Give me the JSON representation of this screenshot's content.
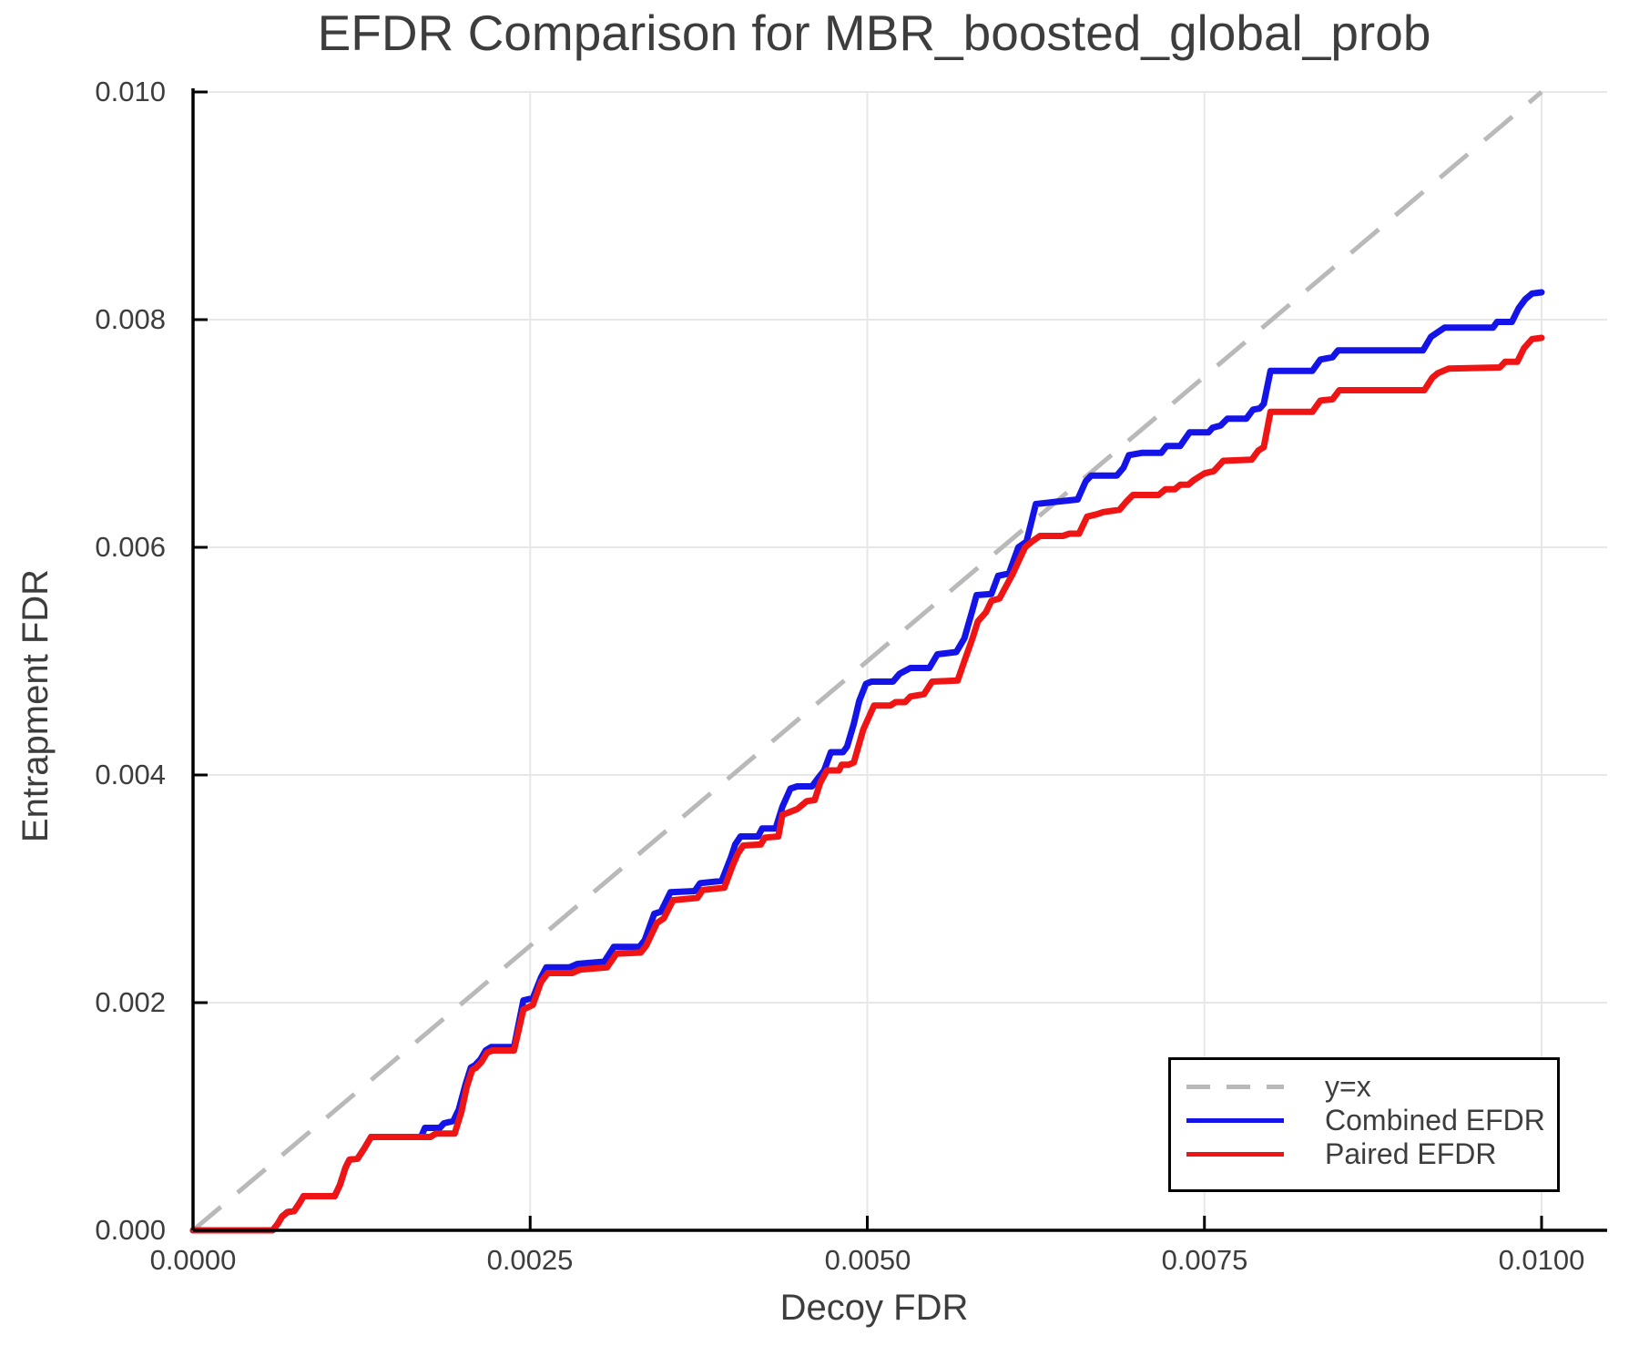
{
  "chart_data": {
    "type": "line",
    "title": "EFDR Comparison for MBR_boosted_global_prob",
    "xlabel": "Decoy FDR",
    "ylabel": "Entrapment FDR",
    "xlim": [
      0.0,
      0.0105
    ],
    "ylim": [
      0.0,
      0.01
    ],
    "grid": true,
    "xticks": {
      "values": [
        0.0,
        0.0025,
        0.005,
        0.0075,
        0.01
      ],
      "labels": [
        "0.0000",
        "0.0025",
        "0.0050",
        "0.0075",
        "0.0100"
      ]
    },
    "yticks": {
      "values": [
        0.0,
        0.002,
        0.004,
        0.006,
        0.008,
        0.01
      ],
      "labels": [
        "0.000",
        "0.002",
        "0.004",
        "0.006",
        "0.008",
        "0.010"
      ]
    },
    "colors": {
      "combined": "#1414e8",
      "paired": "#ef1515",
      "reference": "#b9b9b9",
      "grid": "#e7e7e7",
      "axis": "#000000",
      "text": "#3d3d3d"
    },
    "legend": {
      "position": "lower right",
      "entries": [
        {
          "label": "y=x",
          "color": "#b9b9b9",
          "dashed": true
        },
        {
          "label": "Combined EFDR",
          "color": "#1414e8",
          "dashed": false
        },
        {
          "label": "Paired EFDR",
          "color": "#ef1515",
          "dashed": false
        }
      ]
    },
    "reference_line": {
      "name": "y=x",
      "from": [
        0.0,
        0.0
      ],
      "to": [
        0.01,
        0.01
      ]
    },
    "series": [
      {
        "name": "Combined EFDR",
        "color": "#1414e8",
        "points": [
          [
            0,
            0
          ],
          [
            0.00059,
            0
          ],
          [
            0.00063,
            6e-05
          ],
          [
            0.00066,
            0.00012
          ],
          [
            0.0007,
            0.00016
          ],
          [
            0.00075,
            0.00017
          ],
          [
            0.00079,
            0.00024
          ],
          [
            0.00082,
            0.0003
          ],
          [
            0.00105,
            0.0003
          ],
          [
            0.00109,
            0.0004
          ],
          [
            0.00113,
            0.00055
          ],
          [
            0.00116,
            0.00062
          ],
          [
            0.00122,
            0.00063
          ],
          [
            0.00127,
            0.00072
          ],
          [
            0.00132,
            0.00082
          ],
          [
            0.00169,
            0.00082
          ],
          [
            0.00172,
            0.0009
          ],
          [
            0.00183,
            0.0009
          ],
          [
            0.00186,
            0.00094
          ],
          [
            0.00193,
            0.00096
          ],
          [
            0.00197,
            0.00106
          ],
          [
            0.00202,
            0.00128
          ],
          [
            0.00206,
            0.00143
          ],
          [
            0.00209,
            0.00145
          ],
          [
            0.00213,
            0.0015
          ],
          [
            0.00217,
            0.00158
          ],
          [
            0.00221,
            0.00161
          ],
          [
            0.00238,
            0.00161
          ],
          [
            0.00245,
            0.00202
          ],
          [
            0.00252,
            0.00204
          ],
          [
            0.00258,
            0.00222
          ],
          [
            0.00262,
            0.00231
          ],
          [
            0.00279,
            0.00231
          ],
          [
            0.00285,
            0.00234
          ],
          [
            0.00305,
            0.00236
          ],
          [
            0.00312,
            0.00249
          ],
          [
            0.00331,
            0.00249
          ],
          [
            0.00335,
            0.00255
          ],
          [
            0.00342,
            0.00278
          ],
          [
            0.00347,
            0.0028
          ],
          [
            0.00354,
            0.00297
          ],
          [
            0.00372,
            0.00298
          ],
          [
            0.00376,
            0.00305
          ],
          [
            0.00392,
            0.00307
          ],
          [
            0.00399,
            0.00328
          ],
          [
            0.00402,
            0.00339
          ],
          [
            0.00406,
            0.00346
          ],
          [
            0.00419,
            0.00346
          ],
          [
            0.00422,
            0.00353
          ],
          [
            0.00432,
            0.00353
          ],
          [
            0.00437,
            0.00372
          ],
          [
            0.00443,
            0.00388
          ],
          [
            0.00448,
            0.0039
          ],
          [
            0.00459,
            0.0039
          ],
          [
            0.00464,
            0.00398
          ],
          [
            0.00468,
            0.00404
          ],
          [
            0.00473,
            0.0042
          ],
          [
            0.00482,
            0.0042
          ],
          [
            0.00485,
            0.00425
          ],
          [
            0.0049,
            0.00445
          ],
          [
            0.00494,
            0.00465
          ],
          [
            0.00499,
            0.0048
          ],
          [
            0.00503,
            0.00482
          ],
          [
            0.00519,
            0.00482
          ],
          [
            0.00524,
            0.00489
          ],
          [
            0.00532,
            0.00494
          ],
          [
            0.00546,
            0.00494
          ],
          [
            0.00552,
            0.00506
          ],
          [
            0.00566,
            0.00508
          ],
          [
            0.00572,
            0.0052
          ],
          [
            0.00578,
            0.00545
          ],
          [
            0.00581,
            0.00558
          ],
          [
            0.00592,
            0.00559
          ],
          [
            0.00597,
            0.00575
          ],
          [
            0.00605,
            0.00577
          ],
          [
            0.00612,
            0.006
          ],
          [
            0.00618,
            0.00605
          ],
          [
            0.00625,
            0.00638
          ],
          [
            0.0064,
            0.0064
          ],
          [
            0.00656,
            0.00642
          ],
          [
            0.00662,
            0.00658
          ],
          [
            0.00666,
            0.00663
          ],
          [
            0.00685,
            0.00663
          ],
          [
            0.0069,
            0.0067
          ],
          [
            0.00694,
            0.00681
          ],
          [
            0.00704,
            0.00683
          ],
          [
            0.00718,
            0.00683
          ],
          [
            0.00722,
            0.00689
          ],
          [
            0.00732,
            0.00689
          ],
          [
            0.00739,
            0.00701
          ],
          [
            0.00753,
            0.00701
          ],
          [
            0.00756,
            0.00705
          ],
          [
            0.00762,
            0.00707
          ],
          [
            0.00767,
            0.00713
          ],
          [
            0.00781,
            0.00713
          ],
          [
            0.00786,
            0.00721
          ],
          [
            0.00791,
            0.00722
          ],
          [
            0.00794,
            0.00726
          ],
          [
            0.00799,
            0.00755
          ],
          [
            0.0083,
            0.00755
          ],
          [
            0.00836,
            0.00765
          ],
          [
            0.00845,
            0.00767
          ],
          [
            0.00849,
            0.00773
          ],
          [
            0.00912,
            0.00773
          ],
          [
            0.00918,
            0.00785
          ],
          [
            0.00923,
            0.00789
          ],
          [
            0.00928,
            0.00793
          ],
          [
            0.00964,
            0.00793
          ],
          [
            0.00967,
            0.00798
          ],
          [
            0.00978,
            0.00798
          ],
          [
            0.00983,
            0.0081
          ],
          [
            0.00988,
            0.00818
          ],
          [
            0.00993,
            0.00823
          ],
          [
            0.01,
            0.00824
          ]
        ]
      },
      {
        "name": "Paired EFDR",
        "color": "#ef1515",
        "points": [
          [
            0,
            0
          ],
          [
            0.00059,
            0
          ],
          [
            0.00063,
            6e-05
          ],
          [
            0.00066,
            0.00012
          ],
          [
            0.0007,
            0.00016
          ],
          [
            0.00075,
            0.00017
          ],
          [
            0.00079,
            0.00024
          ],
          [
            0.00082,
            0.0003
          ],
          [
            0.00105,
            0.0003
          ],
          [
            0.00109,
            0.0004
          ],
          [
            0.00113,
            0.00055
          ],
          [
            0.00116,
            0.00062
          ],
          [
            0.00122,
            0.00063
          ],
          [
            0.00127,
            0.00072
          ],
          [
            0.00132,
            0.00082
          ],
          [
            0.00176,
            0.00082
          ],
          [
            0.0018,
            0.00085
          ],
          [
            0.00194,
            0.00085
          ],
          [
            0.00199,
            0.00104
          ],
          [
            0.00203,
            0.00126
          ],
          [
            0.00207,
            0.00141
          ],
          [
            0.0021,
            0.00143
          ],
          [
            0.00214,
            0.00148
          ],
          [
            0.00218,
            0.00156
          ],
          [
            0.00222,
            0.00158
          ],
          [
            0.00238,
            0.00158
          ],
          [
            0.00245,
            0.00194
          ],
          [
            0.00252,
            0.00198
          ],
          [
            0.00258,
            0.00218
          ],
          [
            0.00263,
            0.00226
          ],
          [
            0.00281,
            0.00226
          ],
          [
            0.00287,
            0.00229
          ],
          [
            0.00307,
            0.00231
          ],
          [
            0.00314,
            0.00243
          ],
          [
            0.00332,
            0.00244
          ],
          [
            0.00336,
            0.0025
          ],
          [
            0.00344,
            0.0027
          ],
          [
            0.00349,
            0.00274
          ],
          [
            0.00356,
            0.0029
          ],
          [
            0.00374,
            0.00292
          ],
          [
            0.00378,
            0.00299
          ],
          [
            0.00394,
            0.00301
          ],
          [
            0.004,
            0.0032
          ],
          [
            0.00404,
            0.00331
          ],
          [
            0.00408,
            0.00338
          ],
          [
            0.00421,
            0.00339
          ],
          [
            0.00424,
            0.00345
          ],
          [
            0.00434,
            0.00346
          ],
          [
            0.00437,
            0.00365
          ],
          [
            0.00448,
            0.0037
          ],
          [
            0.00455,
            0.00377
          ],
          [
            0.00461,
            0.00378
          ],
          [
            0.00465,
            0.00393
          ],
          [
            0.0047,
            0.00404
          ],
          [
            0.00479,
            0.00404
          ],
          [
            0.00481,
            0.00409
          ],
          [
            0.00486,
            0.00409
          ],
          [
            0.0049,
            0.00411
          ],
          [
            0.00497,
            0.0044
          ],
          [
            0.00505,
            0.00461
          ],
          [
            0.00517,
            0.00461
          ],
          [
            0.00521,
            0.00464
          ],
          [
            0.00528,
            0.00464
          ],
          [
            0.00532,
            0.00469
          ],
          [
            0.00542,
            0.00471
          ],
          [
            0.00548,
            0.00482
          ],
          [
            0.00567,
            0.00483
          ],
          [
            0.00572,
            0.005
          ],
          [
            0.00578,
            0.0052
          ],
          [
            0.00582,
            0.00535
          ],
          [
            0.00588,
            0.00543
          ],
          [
            0.00592,
            0.00553
          ],
          [
            0.00598,
            0.00555
          ],
          [
            0.00608,
            0.00577
          ],
          [
            0.00613,
            0.0059
          ],
          [
            0.00617,
            0.006
          ],
          [
            0.00622,
            0.00605
          ],
          [
            0.00628,
            0.0061
          ],
          [
            0.00645,
            0.0061
          ],
          [
            0.0065,
            0.00612
          ],
          [
            0.00657,
            0.00612
          ],
          [
            0.00663,
            0.00627
          ],
          [
            0.0067,
            0.00629
          ],
          [
            0.00675,
            0.00631
          ],
          [
            0.00687,
            0.00633
          ],
          [
            0.00692,
            0.0064
          ],
          [
            0.00697,
            0.00646
          ],
          [
            0.00716,
            0.00646
          ],
          [
            0.00721,
            0.00651
          ],
          [
            0.00728,
            0.00651
          ],
          [
            0.00732,
            0.00655
          ],
          [
            0.00738,
            0.00655
          ],
          [
            0.00742,
            0.00659
          ],
          [
            0.0075,
            0.00665
          ],
          [
            0.00757,
            0.00667
          ],
          [
            0.00764,
            0.00676
          ],
          [
            0.00785,
            0.00677
          ],
          [
            0.0079,
            0.00685
          ],
          [
            0.00794,
            0.00688
          ],
          [
            0.00799,
            0.00719
          ],
          [
            0.0083,
            0.00719
          ],
          [
            0.00836,
            0.00729
          ],
          [
            0.00845,
            0.0073
          ],
          [
            0.0085,
            0.00738
          ],
          [
            0.00913,
            0.00738
          ],
          [
            0.00919,
            0.00749
          ],
          [
            0.00923,
            0.00753
          ],
          [
            0.00931,
            0.00757
          ],
          [
            0.00969,
            0.00758
          ],
          [
            0.00973,
            0.00763
          ],
          [
            0.00982,
            0.00763
          ],
          [
            0.00987,
            0.00775
          ],
          [
            0.00993,
            0.00783
          ],
          [
            0.01,
            0.00784
          ]
        ]
      }
    ]
  }
}
